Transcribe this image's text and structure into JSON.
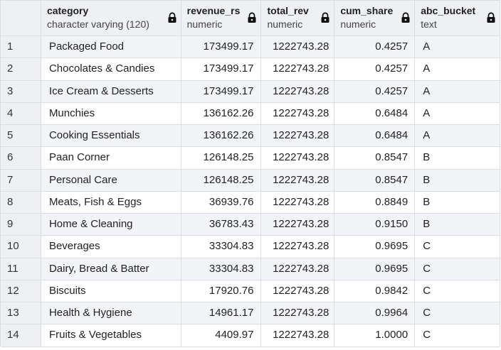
{
  "columns": [
    {
      "name": "category",
      "type": "character varying (120)"
    },
    {
      "name": "revenue_rs",
      "type": "numeric"
    },
    {
      "name": "total_rev",
      "type": "numeric"
    },
    {
      "name": "cum_share",
      "type": "numeric"
    },
    {
      "name": "abc_bucket",
      "type": "text"
    }
  ],
  "rows": [
    {
      "idx": "1",
      "category": "Packaged Food",
      "revenue_rs": "173499.17",
      "total_rev": "1222743.28",
      "cum_share": "0.4257",
      "abc_bucket": "A"
    },
    {
      "idx": "2",
      "category": "Chocolates & Candies",
      "revenue_rs": "173499.17",
      "total_rev": "1222743.28",
      "cum_share": "0.4257",
      "abc_bucket": "A"
    },
    {
      "idx": "3",
      "category": "Ice Cream & Desserts",
      "revenue_rs": "173499.17",
      "total_rev": "1222743.28",
      "cum_share": "0.4257",
      "abc_bucket": "A"
    },
    {
      "idx": "4",
      "category": "Munchies",
      "revenue_rs": "136162.26",
      "total_rev": "1222743.28",
      "cum_share": "0.6484",
      "abc_bucket": "A"
    },
    {
      "idx": "5",
      "category": "Cooking Essentials",
      "revenue_rs": "136162.26",
      "total_rev": "1222743.28",
      "cum_share": "0.6484",
      "abc_bucket": "A"
    },
    {
      "idx": "6",
      "category": "Paan Corner",
      "revenue_rs": "126148.25",
      "total_rev": "1222743.28",
      "cum_share": "0.8547",
      "abc_bucket": "B"
    },
    {
      "idx": "7",
      "category": "Personal Care",
      "revenue_rs": "126148.25",
      "total_rev": "1222743.28",
      "cum_share": "0.8547",
      "abc_bucket": "B"
    },
    {
      "idx": "8",
      "category": "Meats, Fish & Eggs",
      "revenue_rs": "36939.76",
      "total_rev": "1222743.28",
      "cum_share": "0.8849",
      "abc_bucket": "B"
    },
    {
      "idx": "9",
      "category": "Home & Cleaning",
      "revenue_rs": "36783.43",
      "total_rev": "1222743.28",
      "cum_share": "0.9150",
      "abc_bucket": "B"
    },
    {
      "idx": "10",
      "category": "Beverages",
      "revenue_rs": "33304.83",
      "total_rev": "1222743.28",
      "cum_share": "0.9695",
      "abc_bucket": "C"
    },
    {
      "idx": "11",
      "category": "Dairy, Bread & Batter",
      "revenue_rs": "33304.83",
      "total_rev": "1222743.28",
      "cum_share": "0.9695",
      "abc_bucket": "C"
    },
    {
      "idx": "12",
      "category": "Biscuits",
      "revenue_rs": "17920.76",
      "total_rev": "1222743.28",
      "cum_share": "0.9842",
      "abc_bucket": "C"
    },
    {
      "idx": "13",
      "category": "Health & Hygiene",
      "revenue_rs": "14961.17",
      "total_rev": "1222743.28",
      "cum_share": "0.9964",
      "abc_bucket": "C"
    },
    {
      "idx": "14",
      "category": "Fruits & Vegetables",
      "revenue_rs": "4409.97",
      "total_rev": "1222743.28",
      "cum_share": "1.0000",
      "abc_bucket": "C"
    }
  ],
  "icons": {
    "column_lock": "lock-icon"
  },
  "colors": {
    "header_bg": "#eef0f4",
    "stripe_bg": "#f2f4f7",
    "grid_line": "#dadde1"
  }
}
